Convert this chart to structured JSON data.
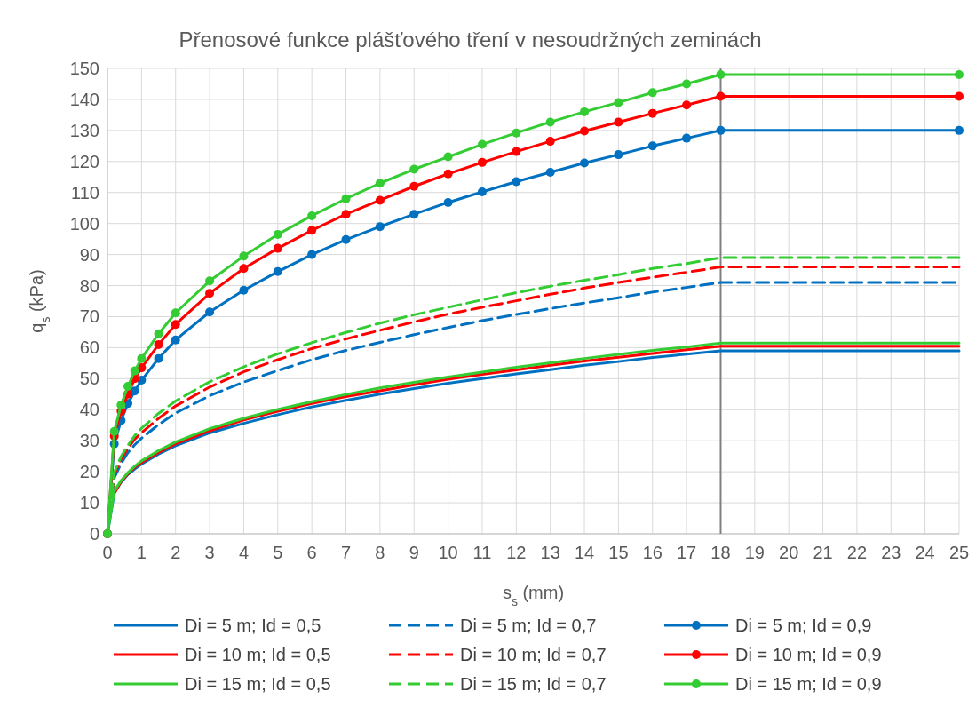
{
  "chart_data": {
    "type": "line",
    "title": "Přenosové funkce plášťového tření v nesoudržných zeminách",
    "xlabel": "s$_{s}$ (mm)",
    "ylabel": "q$_{s}$ (kPa)",
    "x": [
      0,
      0.2,
      0.4,
      0.6,
      0.8,
      1,
      1.5,
      2,
      3,
      4,
      5,
      6,
      7,
      8,
      9,
      10,
      11,
      12,
      13,
      14,
      15,
      16,
      17,
      18,
      25
    ],
    "xlim": [
      0,
      25
    ],
    "xticks": [
      0,
      1,
      2,
      3,
      4,
      5,
      6,
      7,
      8,
      9,
      10,
      11,
      12,
      13,
      14,
      15,
      16,
      17,
      18,
      19,
      20,
      21,
      22,
      23,
      24,
      25
    ],
    "ylim": [
      0,
      150
    ],
    "yticks": [
      0,
      10,
      20,
      30,
      40,
      50,
      60,
      70,
      80,
      90,
      100,
      110,
      120,
      130,
      140,
      150
    ],
    "grid": true,
    "legend": "bottom",
    "ref_lines": [
      {
        "axis": "x",
        "value": 18,
        "color": "#808080"
      }
    ],
    "series": [
      {
        "name": "Di = 5 m; Id = 0,5",
        "color": "#0070c0",
        "line_style": "solid",
        "marker": "none",
        "values": [
          0,
          13.2,
          16.6,
          19.1,
          20.9,
          22.5,
          25.7,
          28.4,
          32.5,
          35.6,
          38.4,
          40.9,
          43,
          45,
          46.8,
          48.5,
          50,
          51.5,
          52.9,
          54.3,
          55.5,
          56.8,
          57.9,
          59,
          59
        ]
      },
      {
        "name": "Di = 5 m; Id = 0,7",
        "color": "#0070c0",
        "line_style": "dashed",
        "marker": "none",
        "values": [
          0,
          18.1,
          22.7,
          26.2,
          28.7,
          30.8,
          35.2,
          38.9,
          44.5,
          48.9,
          52.6,
          56.1,
          59.1,
          61.7,
          64.2,
          66.5,
          68.7,
          70.7,
          72.6,
          74.4,
          76.1,
          77.9,
          79.4,
          81,
          81
        ]
      },
      {
        "name": "Di = 5 m; Id = 0,9",
        "color": "#0070c0",
        "line_style": "solid",
        "marker": "circle",
        "values": [
          0,
          29,
          36.5,
          42,
          46,
          49.5,
          56.5,
          62.5,
          71.5,
          78.5,
          84.5,
          90,
          94.8,
          99,
          103,
          106.8,
          110.2,
          113.5,
          116.5,
          119.5,
          122.2,
          125,
          127.5,
          130,
          130
        ]
      },
      {
        "name": "Di = 10 m; Id = 0,5",
        "color": "#ff0000",
        "line_style": "solid",
        "marker": "none",
        "values": [
          null,
          13,
          16.9,
          19.3,
          21.5,
          23,
          26.2,
          29,
          33.2,
          36.7,
          39.5,
          42,
          44.2,
          46.1,
          48,
          49.8,
          51.4,
          52.8,
          54.3,
          55.7,
          56.9,
          58.1,
          59.3,
          60.5,
          60.5
        ]
      },
      {
        "name": "Di = 10 m; Id = 0,7",
        "color": "#ff0000",
        "line_style": "dashed",
        "marker": "none",
        "values": [
          0,
          19.2,
          24.1,
          27.5,
          30.5,
          32.6,
          37.2,
          41.2,
          47.3,
          52.2,
          56.1,
          59.7,
          62.8,
          65.6,
          68.3,
          70.8,
          73,
          75.1,
          77.2,
          79.2,
          81,
          82.7,
          84.3,
          86,
          86
        ]
      },
      {
        "name": "Di = 10 m; Id = 0,9",
        "color": "#ff0000",
        "line_style": "solid",
        "marker": "circle",
        "values": [
          0,
          31.5,
          39.5,
          45,
          50,
          53.5,
          61,
          67.5,
          77.5,
          85.5,
          92,
          97.8,
          103,
          107.5,
          112,
          116,
          119.7,
          123.2,
          126.5,
          129.8,
          132.7,
          135.5,
          138.2,
          141,
          141
        ]
      },
      {
        "name": "Di = 15 m; Id = 0,5",
        "color": "#33cc33",
        "line_style": "solid",
        "marker": "none",
        "values": [
          0,
          13.7,
          17.2,
          19.7,
          21.8,
          23.5,
          26.8,
          29.6,
          33.9,
          37.2,
          40.1,
          42.6,
          44.9,
          47,
          48.8,
          50.5,
          52.1,
          53.7,
          55.1,
          56.5,
          57.8,
          59.1,
          60.2,
          61.5,
          61.5
        ]
      },
      {
        "name": "Di = 15 m; Id = 0,7",
        "color": "#33cc33",
        "line_style": "dashed",
        "marker": "none",
        "values": [
          0,
          19.8,
          24.9,
          28.5,
          31.6,
          34,
          38.8,
          42.8,
          49,
          53.8,
          58,
          61.6,
          64.9,
          67.9,
          70.6,
          73,
          75.4,
          77.7,
          79.8,
          81.7,
          83.5,
          85.5,
          87.1,
          89,
          89
        ]
      },
      {
        "name": "Di = 15 m; Id = 0,9",
        "color": "#33cc33",
        "line_style": "solid",
        "marker": "circle",
        "values": [
          0,
          33,
          41.5,
          47.5,
          52.5,
          56.5,
          64.5,
          71.2,
          81.5,
          89.5,
          96.5,
          102.5,
          108,
          113,
          117.5,
          121.5,
          125.5,
          129.2,
          132.7,
          136,
          139,
          142.2,
          145,
          148,
          148
        ]
      }
    ]
  }
}
